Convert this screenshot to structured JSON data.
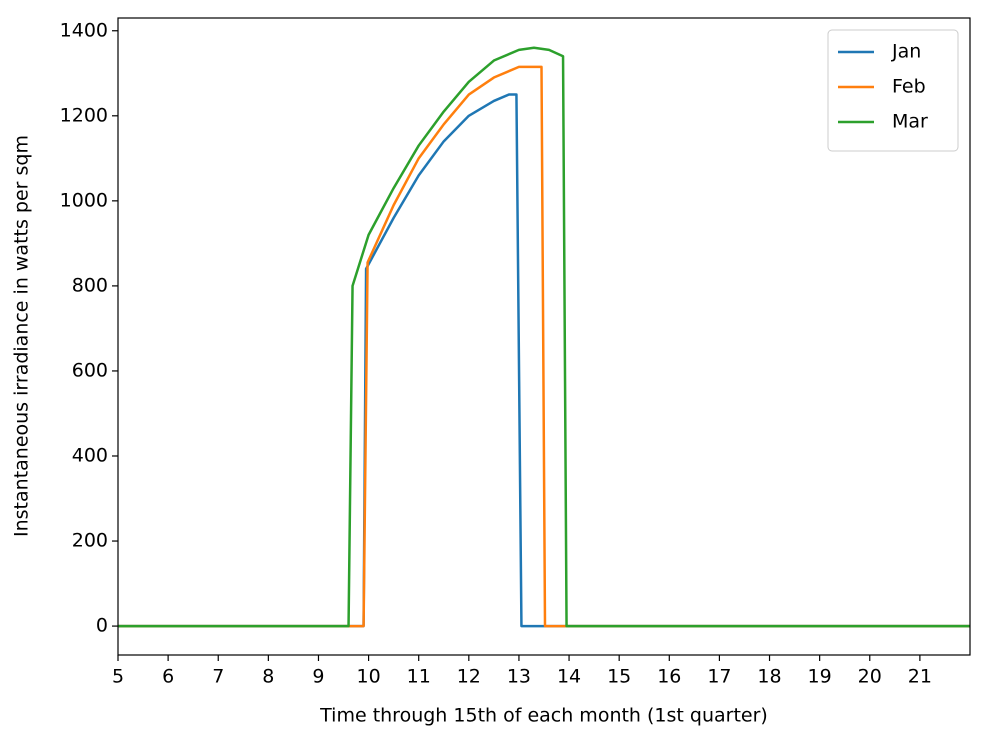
{
  "chart_data": {
    "type": "line",
    "xlabel": "Time through 15th of each month (1st quarter)",
    "ylabel": "Instantaneous irradiance in watts per sqm",
    "xlim": [
      5,
      22
    ],
    "ylim": [
      -68,
      1430
    ],
    "xticks": [
      5,
      6,
      7,
      8,
      9,
      10,
      11,
      12,
      13,
      14,
      15,
      16,
      17,
      18,
      19,
      20,
      21
    ],
    "yticks": [
      0,
      200,
      400,
      600,
      800,
      1000,
      1200,
      1400
    ],
    "grid": false,
    "legend": "upper right",
    "series": [
      {
        "name": "Jan",
        "color": "#1f77b4",
        "x": [
          5,
          9.9,
          9.95,
          10.5,
          11,
          11.5,
          12,
          12.5,
          12.8,
          12.95,
          13.05,
          22
        ],
        "values": [
          0,
          0,
          840,
          960,
          1060,
          1140,
          1200,
          1235,
          1250,
          1250,
          0,
          0
        ]
      },
      {
        "name": "Feb",
        "color": "#ff7f0e",
        "x": [
          5,
          9.9,
          9.98,
          10.5,
          11,
          11.5,
          12,
          12.5,
          13,
          13.45,
          13.52,
          22
        ],
        "values": [
          0,
          0,
          855,
          990,
          1100,
          1180,
          1250,
          1290,
          1315,
          1315,
          0,
          0
        ]
      },
      {
        "name": "Mar",
        "color": "#2ca02c",
        "x": [
          5,
          9.6,
          9.68,
          10,
          10.5,
          11,
          11.5,
          12,
          12.5,
          13,
          13.3,
          13.6,
          13.88,
          13.95,
          22
        ],
        "values": [
          0,
          0,
          800,
          920,
          1030,
          1130,
          1210,
          1280,
          1330,
          1355,
          1360,
          1355,
          1340,
          0,
          0
        ]
      }
    ]
  }
}
